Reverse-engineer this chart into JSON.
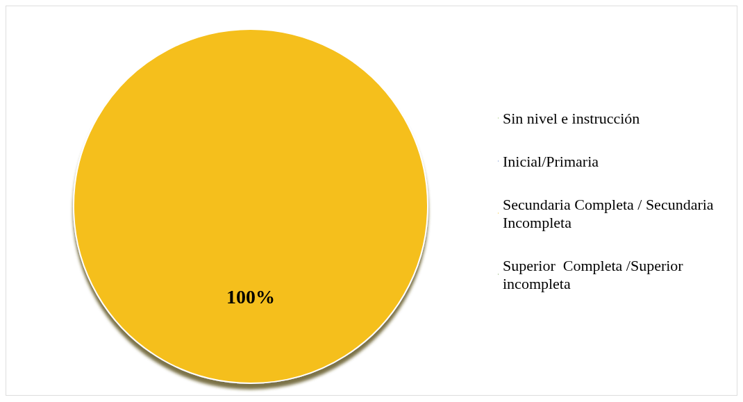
{
  "chart_data": {
    "type": "pie",
    "categories": [
      "Sin nivel e instrucción",
      "Inicial/Primaria",
      "Secundaria Completa / Secundaria Incompleta",
      "Superior  Completa /Superior incompleta"
    ],
    "values": [
      0,
      0,
      100,
      0
    ],
    "colors": [
      "#8fbc5a",
      "#5b7fc7",
      "#f5bf1a",
      "#6e9e4e"
    ],
    "value_labels": [
      null,
      null,
      "100%",
      null
    ],
    "legend": "right"
  }
}
